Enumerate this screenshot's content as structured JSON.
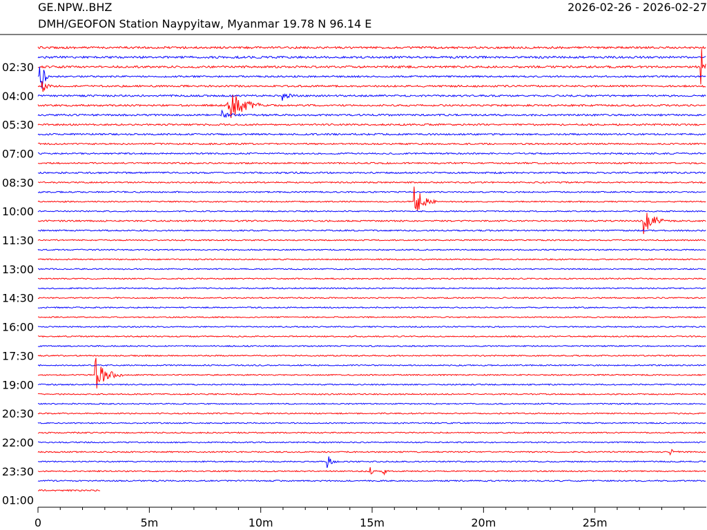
{
  "header": {
    "station_code": "GE.NPW..BHZ",
    "station_name": "DMH/GEOFON Station Naypyitaw, Myanmar  19.78 N 96.14 E",
    "date_range": "2026-02-26 - 2026-02-27"
  },
  "chart_data": {
    "type": "line",
    "title": "",
    "xlabel": "",
    "ylabel": "",
    "xlim": [
      0,
      30
    ],
    "x_ticks": [
      {
        "value": 0,
        "label": "0"
      },
      {
        "value": 5,
        "label": "5m"
      },
      {
        "value": 10,
        "label": "10m"
      },
      {
        "value": 15,
        "label": "15m"
      },
      {
        "value": 20,
        "label": "20m"
      },
      {
        "value": 25,
        "label": "25m"
      }
    ],
    "line_minutes": 30,
    "y_tick_labels": [
      "02:30",
      "04:00",
      "05:30",
      "07:00",
      "08:30",
      "10:00",
      "11:30",
      "13:00",
      "14:30",
      "16:00",
      "17:30",
      "19:00",
      "20:30",
      "22:00",
      "23:30",
      "01:00"
    ],
    "colors": {
      "a": "#ff0000",
      "b": "#0000ff"
    },
    "trace_count": 47,
    "last_trace_end_minute": 2.8,
    "noise_levels": [
      1.5,
      1.5,
      1.5,
      1.2,
      1.3,
      1.3,
      1.3,
      1.3,
      1.2,
      1.2,
      1.1,
      1.1,
      1.1,
      1.2,
      1.0,
      1.0,
      0.9,
      0.9,
      1.1,
      1.0,
      0.9,
      0.9,
      0.9,
      0.9,
      0.9,
      0.9,
      0.9,
      0.9,
      0.9,
      0.9,
      0.9,
      0.9,
      0.9,
      0.9,
      0.9,
      0.9,
      0.9,
      0.9,
      0.9,
      0.9,
      0.9,
      0.9,
      0.9,
      0.9,
      0.9,
      1.0,
      1.1
    ],
    "events": [
      {
        "trace": 3,
        "minute": 0.1,
        "amplitude": 32,
        "duration": 0.4
      },
      {
        "trace": 4,
        "minute": 0.2,
        "amplitude": 8,
        "duration": 0.5
      },
      {
        "trace": 2,
        "minute": 29.8,
        "amplitude": 30,
        "duration": 0.4
      },
      {
        "trace": 6,
        "minute": 8.5,
        "amplitude": 30,
        "duration": 1.6
      },
      {
        "trace": 5,
        "minute": 11.0,
        "amplitude": 9,
        "duration": 0.5
      },
      {
        "trace": 7,
        "minute": 8.3,
        "amplitude": 6,
        "duration": 0.8
      },
      {
        "trace": 16,
        "minute": 16.9,
        "amplitude": 24,
        "duration": 1.0
      },
      {
        "trace": 18,
        "minute": 27.2,
        "amplitude": 28,
        "duration": 0.9
      },
      {
        "trace": 34,
        "minute": 2.6,
        "amplitude": 24,
        "duration": 1.2
      },
      {
        "trace": 43,
        "minute": 13.0,
        "amplitude": 9,
        "duration": 0.5
      },
      {
        "trace": 44,
        "minute": 14.9,
        "amplitude": 6,
        "duration": 0.3
      },
      {
        "trace": 44,
        "minute": 15.5,
        "amplitude": 6,
        "duration": 0.3
      },
      {
        "trace": 42,
        "minute": 28.4,
        "amplitude": 7,
        "duration": 0.4
      }
    ]
  }
}
